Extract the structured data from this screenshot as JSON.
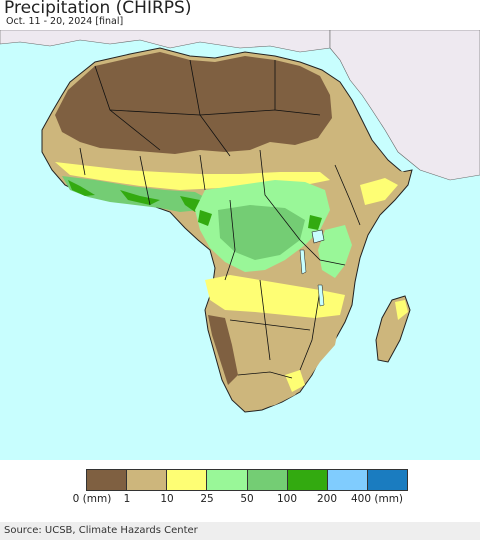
{
  "title": "Precipitation (CHIRPS)",
  "subtitle": "Oct. 11 - 20, 2024 [final]",
  "legend": {
    "colors": [
      "#7f6041",
      "#cdb67c",
      "#fefe74",
      "#99f798",
      "#74cd74",
      "#33aa10",
      "#80ccfe",
      "#1a7cc0"
    ],
    "ticks": [
      "0 (mm)",
      "1",
      "10",
      "25",
      "50",
      "100",
      "200",
      "400 (mm)"
    ]
  },
  "colors": {
    "ocean": "#c8fefe",
    "land_outside": "#eee9f0",
    "borders": "#111111"
  },
  "source": "Source: UCSB, Climate Hazards Center"
}
